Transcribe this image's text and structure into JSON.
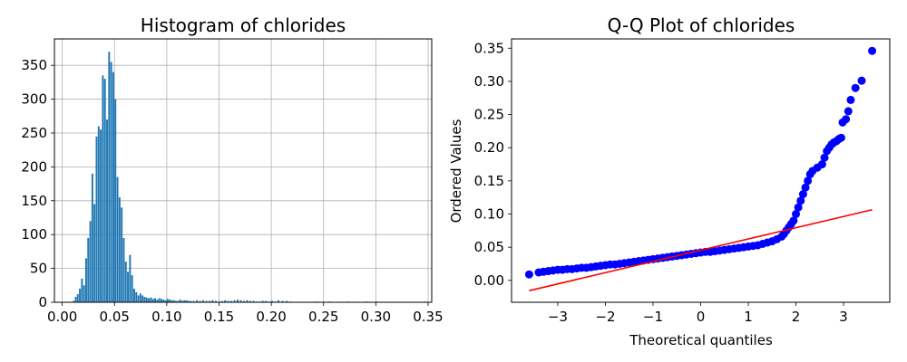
{
  "chart_data": [
    {
      "type": "bar",
      "title": "Histogram of chlorides",
      "xlabel": "",
      "ylabel": "",
      "xlim": [
        -0.0075,
        0.3535
      ],
      "ylim": [
        0,
        389
      ],
      "grid": true,
      "bar_color": "#1f77b4",
      "xticks": [
        0.0,
        0.05,
        0.1,
        0.15,
        0.2,
        0.25,
        0.3,
        0.35
      ],
      "xtick_labels": [
        "0.00",
        "0.05",
        "0.10",
        "0.15",
        "0.20",
        "0.25",
        "0.30",
        "0.35"
      ],
      "yticks": [
        0,
        50,
        100,
        150,
        200,
        250,
        300,
        350
      ],
      "ytick_labels": [
        "0",
        "50",
        "100",
        "150",
        "200",
        "250",
        "300",
        "350"
      ],
      "bin_width": 0.00168,
      "bins": [
        [
          0.01,
          2
        ],
        [
          0.012,
          8
        ],
        [
          0.014,
          12
        ],
        [
          0.016,
          20
        ],
        [
          0.018,
          35
        ],
        [
          0.02,
          25
        ],
        [
          0.022,
          65
        ],
        [
          0.024,
          95
        ],
        [
          0.026,
          120
        ],
        [
          0.028,
          190
        ],
        [
          0.03,
          145
        ],
        [
          0.032,
          245
        ],
        [
          0.034,
          260
        ],
        [
          0.036,
          255
        ],
        [
          0.038,
          335
        ],
        [
          0.04,
          330
        ],
        [
          0.042,
          270
        ],
        [
          0.044,
          370
        ],
        [
          0.046,
          355
        ],
        [
          0.048,
          340
        ],
        [
          0.05,
          300
        ],
        [
          0.052,
          185
        ],
        [
          0.054,
          155
        ],
        [
          0.056,
          140
        ],
        [
          0.058,
          95
        ],
        [
          0.06,
          60
        ],
        [
          0.062,
          45
        ],
        [
          0.064,
          70
        ],
        [
          0.066,
          40
        ],
        [
          0.068,
          20
        ],
        [
          0.07,
          15
        ],
        [
          0.072,
          10
        ],
        [
          0.074,
          13
        ],
        [
          0.076,
          10
        ],
        [
          0.078,
          8
        ],
        [
          0.08,
          7
        ],
        [
          0.082,
          6
        ],
        [
          0.084,
          7
        ],
        [
          0.086,
          5
        ],
        [
          0.088,
          6
        ],
        [
          0.09,
          4
        ],
        [
          0.092,
          6
        ],
        [
          0.094,
          5
        ],
        [
          0.096,
          4
        ],
        [
          0.098,
          3
        ],
        [
          0.1,
          5
        ],
        [
          0.102,
          4
        ],
        [
          0.104,
          3
        ],
        [
          0.106,
          3
        ],
        [
          0.108,
          2
        ],
        [
          0.11,
          2
        ],
        [
          0.112,
          4
        ],
        [
          0.114,
          2
        ],
        [
          0.116,
          3
        ],
        [
          0.118,
          3
        ],
        [
          0.12,
          2
        ],
        [
          0.122,
          2
        ],
        [
          0.125,
          2
        ],
        [
          0.128,
          3
        ],
        [
          0.131,
          2
        ],
        [
          0.134,
          3
        ],
        [
          0.137,
          2
        ],
        [
          0.14,
          2
        ],
        [
          0.143,
          3
        ],
        [
          0.146,
          2
        ],
        [
          0.149,
          1
        ],
        [
          0.152,
          2
        ],
        [
          0.155,
          3
        ],
        [
          0.158,
          2
        ],
        [
          0.161,
          2
        ],
        [
          0.164,
          3
        ],
        [
          0.167,
          4
        ],
        [
          0.17,
          3
        ],
        [
          0.173,
          2
        ],
        [
          0.176,
          3
        ],
        [
          0.179,
          2
        ],
        [
          0.182,
          2
        ],
        [
          0.185,
          1
        ],
        [
          0.188,
          1
        ],
        [
          0.191,
          2
        ],
        [
          0.194,
          2
        ],
        [
          0.197,
          1
        ],
        [
          0.2,
          2
        ],
        [
          0.203,
          1
        ],
        [
          0.206,
          3
        ],
        [
          0.21,
          2
        ],
        [
          0.214,
          2
        ],
        [
          0.218,
          1
        ],
        [
          0.241,
          1
        ],
        [
          0.244,
          1
        ],
        [
          0.255,
          1
        ],
        [
          0.273,
          1
        ],
        [
          0.29,
          1
        ],
        [
          0.301,
          1
        ],
        [
          0.346,
          1
        ]
      ]
    },
    {
      "type": "scatter",
      "title": "Q-Q Plot of chlorides",
      "xlabel": "Theoretical quantiles",
      "ylabel": "Ordered Values",
      "xlim": [
        -3.97,
        3.97
      ],
      "ylim": [
        -0.033,
        0.364
      ],
      "grid": false,
      "point_color": "#0000ff",
      "line_color": "#ff0000",
      "xticks": [
        -3,
        -2,
        -1,
        0,
        1,
        2,
        3
      ],
      "xtick_labels": [
        "−3",
        "−2",
        "−1",
        "0",
        "1",
        "2",
        "3"
      ],
      "yticks": [
        0.0,
        0.05,
        0.1,
        0.15,
        0.2,
        0.25,
        0.3,
        0.35
      ],
      "ytick_labels": [
        "0.00",
        "0.05",
        "0.10",
        "0.15",
        "0.20",
        "0.25",
        "0.30",
        "0.35"
      ],
      "fit_line": {
        "x": [
          -3.6,
          3.6
        ],
        "y": [
          -0.0155,
          0.1065
        ]
      },
      "points": [
        [
          -3.6,
          0.009
        ],
        [
          -3.4,
          0.012
        ],
        [
          -3.3,
          0.013
        ],
        [
          -3.2,
          0.014
        ],
        [
          -3.1,
          0.015
        ],
        [
          -3.0,
          0.016
        ],
        [
          -2.9,
          0.016
        ],
        [
          -2.8,
          0.017
        ],
        [
          -2.7,
          0.017
        ],
        [
          -2.6,
          0.018
        ],
        [
          -2.5,
          0.019
        ],
        [
          -2.4,
          0.019
        ],
        [
          -2.3,
          0.02
        ],
        [
          -2.2,
          0.021
        ],
        [
          -2.1,
          0.022
        ],
        [
          -2.0,
          0.023
        ],
        [
          -1.9,
          0.024
        ],
        [
          -1.8,
          0.024
        ],
        [
          -1.7,
          0.025
        ],
        [
          -1.6,
          0.026
        ],
        [
          -1.5,
          0.027
        ],
        [
          -1.4,
          0.028
        ],
        [
          -1.3,
          0.029
        ],
        [
          -1.2,
          0.03
        ],
        [
          -1.1,
          0.031
        ],
        [
          -1.0,
          0.032
        ],
        [
          -0.9,
          0.033
        ],
        [
          -0.8,
          0.034
        ],
        [
          -0.7,
          0.035
        ],
        [
          -0.6,
          0.036
        ],
        [
          -0.5,
          0.037
        ],
        [
          -0.4,
          0.038
        ],
        [
          -0.3,
          0.039
        ],
        [
          -0.2,
          0.04
        ],
        [
          -0.1,
          0.041
        ],
        [
          0.0,
          0.042
        ],
        [
          0.1,
          0.043
        ],
        [
          0.2,
          0.043
        ],
        [
          0.3,
          0.044
        ],
        [
          0.4,
          0.045
        ],
        [
          0.5,
          0.046
        ],
        [
          0.6,
          0.047
        ],
        [
          0.7,
          0.048
        ],
        [
          0.8,
          0.049
        ],
        [
          0.9,
          0.05
        ],
        [
          1.0,
          0.051
        ],
        [
          1.1,
          0.052
        ],
        [
          1.2,
          0.053
        ],
        [
          1.3,
          0.055
        ],
        [
          1.4,
          0.057
        ],
        [
          1.5,
          0.059
        ],
        [
          1.6,
          0.062
        ],
        [
          1.7,
          0.066
        ],
        [
          1.75,
          0.07
        ],
        [
          1.8,
          0.075
        ],
        [
          1.85,
          0.08
        ],
        [
          1.9,
          0.085
        ],
        [
          1.95,
          0.09
        ],
        [
          2.0,
          0.1
        ],
        [
          2.05,
          0.11
        ],
        [
          2.1,
          0.12
        ],
        [
          2.15,
          0.13
        ],
        [
          2.2,
          0.14
        ],
        [
          2.25,
          0.15
        ],
        [
          2.3,
          0.16
        ],
        [
          2.35,
          0.165
        ],
        [
          2.45,
          0.17
        ],
        [
          2.55,
          0.175
        ],
        [
          2.6,
          0.185
        ],
        [
          2.65,
          0.195
        ],
        [
          2.7,
          0.2
        ],
        [
          2.75,
          0.205
        ],
        [
          2.8,
          0.208
        ],
        [
          2.85,
          0.21
        ],
        [
          2.9,
          0.213
        ],
        [
          2.95,
          0.215
        ],
        [
          2.98,
          0.238
        ],
        [
          3.05,
          0.243
        ],
        [
          3.1,
          0.255
        ],
        [
          3.15,
          0.272
        ],
        [
          3.25,
          0.29
        ],
        [
          3.38,
          0.301
        ],
        [
          3.6,
          0.346
        ]
      ]
    }
  ]
}
